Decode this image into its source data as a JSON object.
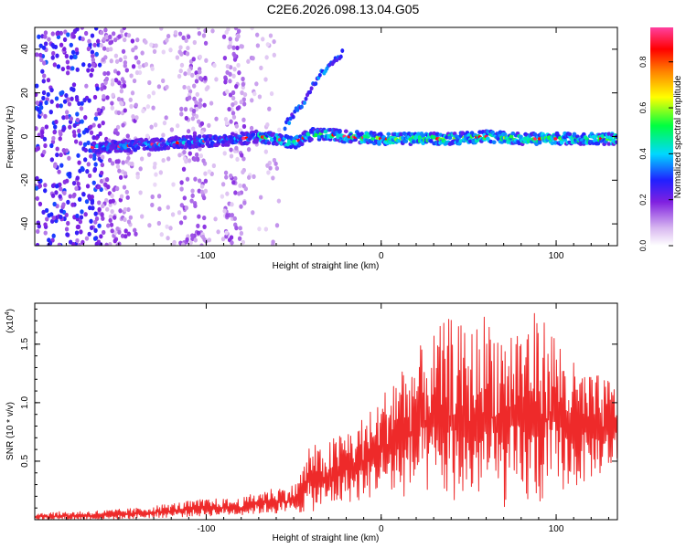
{
  "title": "C2E6.2026.098.13.04.G05",
  "chart_data": [
    {
      "type": "heatmap",
      "panel": "spectrogram",
      "xlabel": "Height of straight line (km)",
      "ylabel": "Frequency (Hz)",
      "xlim": [
        -198,
        135
      ],
      "ylim": [
        -50,
        50
      ],
      "xticks": [
        -100,
        0,
        100
      ],
      "xtick_labels": [
        "-100",
        "0",
        "100"
      ],
      "yticks": [
        -40,
        -20,
        0,
        20,
        40
      ],
      "ytick_labels": [
        "-40",
        "-20",
        "0",
        "20",
        "40"
      ],
      "colorbar": {
        "label": "Normalized spectral amplitude",
        "range": [
          0,
          0.95
        ],
        "ticks": [
          0.0,
          0.2,
          0.4,
          0.6,
          0.8
        ],
        "tick_labels": [
          "0.0",
          "0.2",
          "0.4",
          "0.6",
          "0.8"
        ],
        "colormap": "rainbow (white-purple-blue-cyan-green-yellow-red-magenta)"
      },
      "ridge": {
        "description": "main Doppler ridge near 0 Hz",
        "path": [
          {
            "x": -160,
            "y": -5
          },
          {
            "x": -140,
            "y": -4
          },
          {
            "x": -120,
            "y": -3
          },
          {
            "x": -100,
            "y": -2
          },
          {
            "x": -80,
            "y": -1
          },
          {
            "x": -70,
            "y": 0
          },
          {
            "x": -60,
            "y": -1
          },
          {
            "x": -50,
            "y": -3
          },
          {
            "x": -40,
            "y": 1
          },
          {
            "x": -30,
            "y": 1
          },
          {
            "x": -20,
            "y": 0
          },
          {
            "x": 0,
            "y": -1
          },
          {
            "x": 20,
            "y": -1
          },
          {
            "x": 40,
            "y": -1
          },
          {
            "x": 60,
            "y": 0
          },
          {
            "x": 80,
            "y": -1
          },
          {
            "x": 100,
            "y": -1
          },
          {
            "x": 120,
            "y": -1
          },
          {
            "x": 135,
            "y": -1
          }
        ],
        "branch": [
          {
            "x": -55,
            "y": 5
          },
          {
            "x": -45,
            "y": 15
          },
          {
            "x": -38,
            "y": 25
          },
          {
            "x": -30,
            "y": 33
          },
          {
            "x": -22,
            "y": 38
          }
        ]
      }
    },
    {
      "type": "line",
      "panel": "snr",
      "xlabel": "Height of straight line (km)",
      "ylabel": "SNR (10 * v/v)",
      "scale_note": "(x10",
      "scale_exponent": "4",
      "xlim": [
        -198,
        135
      ],
      "ylim": [
        0,
        1.85
      ],
      "xticks": [
        -100,
        0,
        100
      ],
      "xtick_labels": [
        "-100",
        "0",
        "100"
      ],
      "yticks": [
        0.5,
        1.0,
        1.5
      ],
      "ytick_labels": [
        "0.5",
        "1.0",
        "1.5"
      ],
      "series": [
        {
          "name": "SNR",
          "color": "#ee2a2a",
          "envelope": {
            "x": [
              -198,
              -180,
              -160,
              -140,
              -120,
              -100,
              -80,
              -70,
              -60,
              -50,
              -45,
              -40,
              -35,
              -30,
              -25,
              -20,
              -15,
              -10,
              -5,
              0,
              5,
              10,
              15,
              20,
              30,
              40,
              50,
              60,
              70,
              80,
              90,
              100,
              110,
              120,
              135
            ],
            "upper": [
              0.06,
              0.07,
              0.08,
              0.1,
              0.14,
              0.18,
              0.18,
              0.25,
              0.28,
              0.3,
              0.45,
              0.7,
              0.6,
              0.68,
              0.72,
              0.8,
              0.8,
              0.9,
              0.95,
              1.05,
              1.2,
              1.4,
              1.35,
              1.45,
              1.6,
              1.75,
              1.6,
              1.8,
              1.65,
              1.75,
              1.78,
              1.62,
              1.35,
              1.25,
              1.2
            ],
            "lower": [
              0.0,
              0.0,
              0.0,
              0.01,
              0.02,
              0.03,
              0.04,
              0.05,
              0.05,
              0.05,
              0.06,
              0.07,
              0.08,
              0.1,
              0.12,
              0.15,
              0.15,
              0.15,
              0.2,
              0.25,
              0.2,
              0.15,
              0.2,
              0.25,
              0.2,
              0.15,
              0.15,
              0.2,
              0.1,
              0.1,
              0.1,
              0.25,
              0.25,
              0.35,
              0.45
            ]
          }
        }
      ]
    }
  ]
}
